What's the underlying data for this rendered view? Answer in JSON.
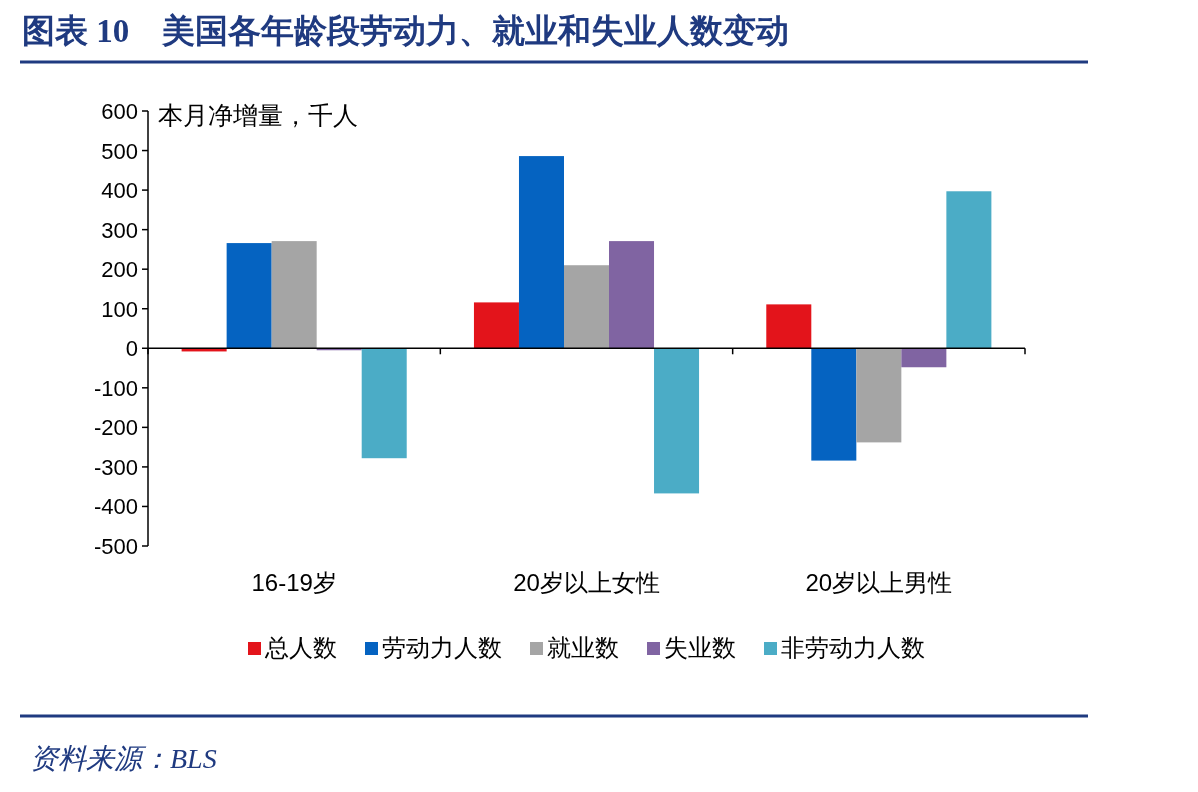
{
  "chart_data": {
    "type": "bar",
    "title": "图表 10　美国各年龄段劳动力、就业和失业人数变动",
    "ylabel": "本月净增量，千人",
    "categories": [
      "16-19岁",
      "20岁以上女性",
      "20岁以上男性"
    ],
    "series": [
      {
        "name": "总人数",
        "color": "#e3141b",
        "values": [
          -8,
          116,
          111
        ]
      },
      {
        "name": "劳动力人数",
        "color": "#0563c1",
        "values": [
          266,
          486,
          -284
        ]
      },
      {
        "name": "就业数",
        "color": "#a5a5a5",
        "values": [
          271,
          210,
          -238
        ]
      },
      {
        "name": "失业数",
        "color": "#8064a2",
        "values": [
          -5,
          271,
          -48
        ]
      },
      {
        "name": "非劳动力人数",
        "color": "#4bacc6",
        "values": [
          -278,
          -367,
          397
        ]
      }
    ],
    "ylim": [
      -500,
      600
    ],
    "yticks": [
      -500,
      -400,
      -300,
      -200,
      -100,
      0,
      100,
      200,
      300,
      400,
      500,
      600
    ],
    "legend": "bottom",
    "annotations": [
      "资料来源：BLS"
    ]
  }
}
